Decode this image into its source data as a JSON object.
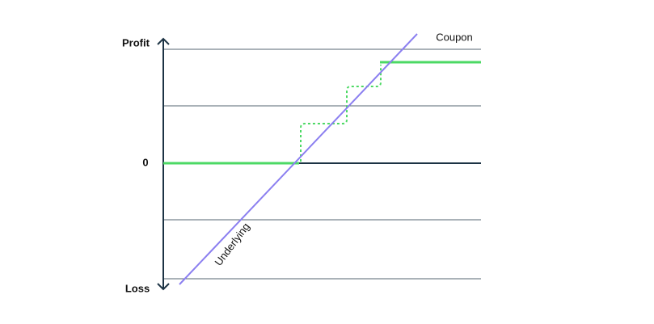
{
  "axis": {
    "top_label": "Profit",
    "zero_label": "0",
    "bottom_label": "Loss"
  },
  "lines": {
    "underlying_label": "Underlying",
    "coupon_label": "Coupon"
  }
}
